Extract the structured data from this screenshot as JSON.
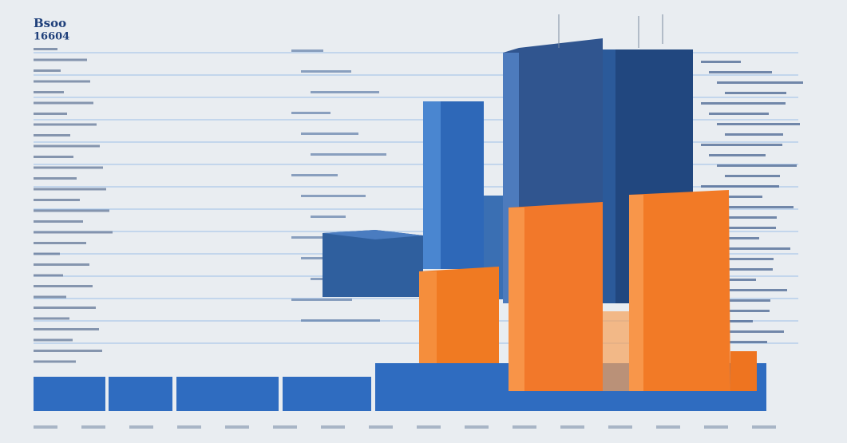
{
  "header": {
    "title": "Bsoo",
    "subtitle": "16604"
  }
}
